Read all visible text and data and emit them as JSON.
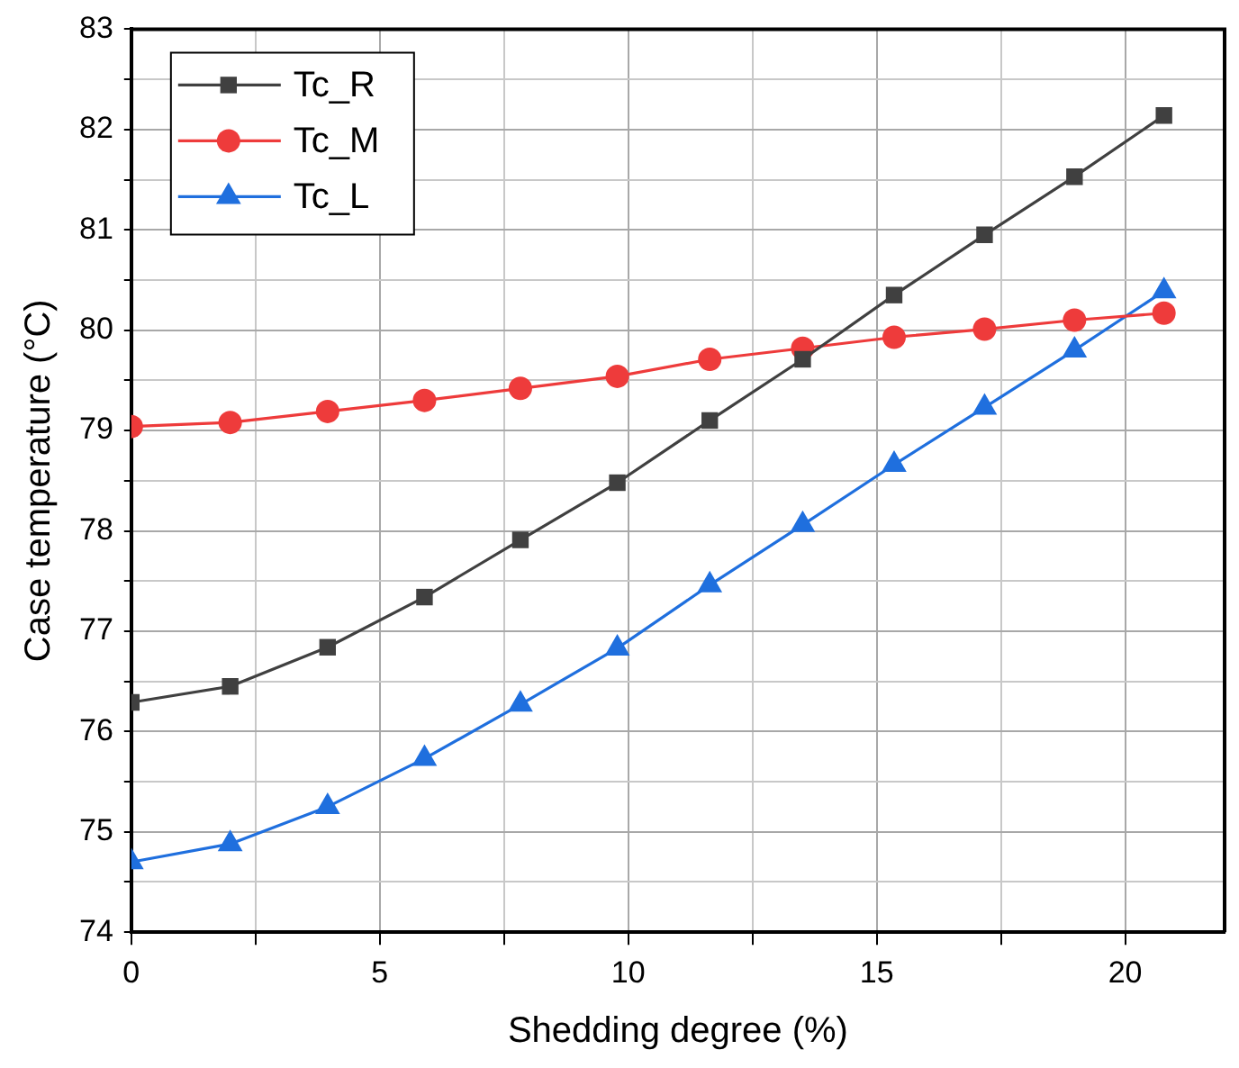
{
  "chart_data": {
    "type": "line",
    "xlabel": "Shedding degree (%)",
    "ylabel": "Case temperature (°C)",
    "xlim": [
      0,
      22
    ],
    "xticks": [
      0,
      {
        "value": 2.5,
        "label": null
      },
      5,
      {
        "value": 7.5,
        "label": null
      },
      10,
      {
        "value": 12.5,
        "label": null
      },
      15,
      {
        "value": 17.5,
        "label": null
      },
      20
    ],
    "ylim": [
      74,
      83
    ],
    "yticks": [
      74,
      {
        "value": 74.5,
        "label": null
      },
      75,
      {
        "value": 75.5,
        "label": null
      },
      76,
      {
        "value": 76.5,
        "label": null
      },
      77,
      {
        "value": 77.5,
        "label": null
      },
      78,
      {
        "value": 78.5,
        "label": null
      },
      79,
      {
        "value": 79.5,
        "label": null
      },
      80,
      {
        "value": 80.5,
        "label": null
      },
      81,
      {
        "value": 81.5,
        "label": null
      },
      82,
      {
        "value": 82.5,
        "label": null
      },
      83
    ],
    "grid": true,
    "legend": "top left",
    "line_style": "solid",
    "x": [
      0,
      1.99,
      3.95,
      5.9,
      7.83,
      9.78,
      11.64,
      13.51,
      15.35,
      17.17,
      18.98,
      20.78
    ],
    "series": [
      {
        "name": "Tc_R",
        "color": "#404040",
        "marker": "square",
        "values": [
          76.29,
          76.45,
          76.84,
          77.34,
          77.91,
          78.48,
          79.1,
          79.71,
          80.35,
          80.95,
          81.53,
          82.14
        ]
      },
      {
        "name": "Tc_M",
        "color": "#ee3b3b",
        "marker": "circle",
        "values": [
          79.04,
          79.08,
          79.19,
          79.3,
          79.42,
          79.54,
          79.71,
          79.82,
          79.93,
          80.01,
          80.1,
          80.17
        ]
      },
      {
        "name": "Tc_L",
        "color": "#1f6fde",
        "marker": "triangle",
        "values": [
          74.7,
          74.88,
          75.25,
          75.73,
          76.27,
          76.83,
          77.46,
          78.06,
          78.66,
          79.23,
          79.8,
          80.39
        ]
      }
    ]
  }
}
